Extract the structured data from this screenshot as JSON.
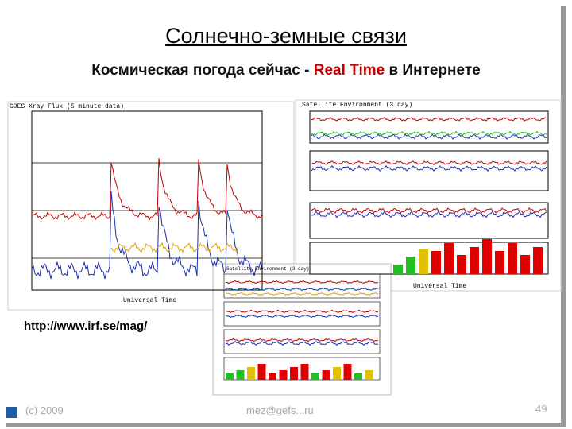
{
  "header": {
    "title": "Солнечно-земные связи",
    "subtitle": {
      "before": "Космическая погода сейчас - ",
      "highlight": "Real Time",
      "after": " в Интернете"
    }
  },
  "figures": {
    "left_title": "GOES Xray Flux (5 minute data)",
    "right_title": "Satellite Environment (3 day)",
    "small_title": "Satellite Environment (3 day)",
    "x_label": "Universal Time"
  },
  "link": "http://www.irf.se/mag/",
  "footer": {
    "copyright": "(c) 2009",
    "email": "mez@gefs...ru",
    "page": "49"
  }
}
